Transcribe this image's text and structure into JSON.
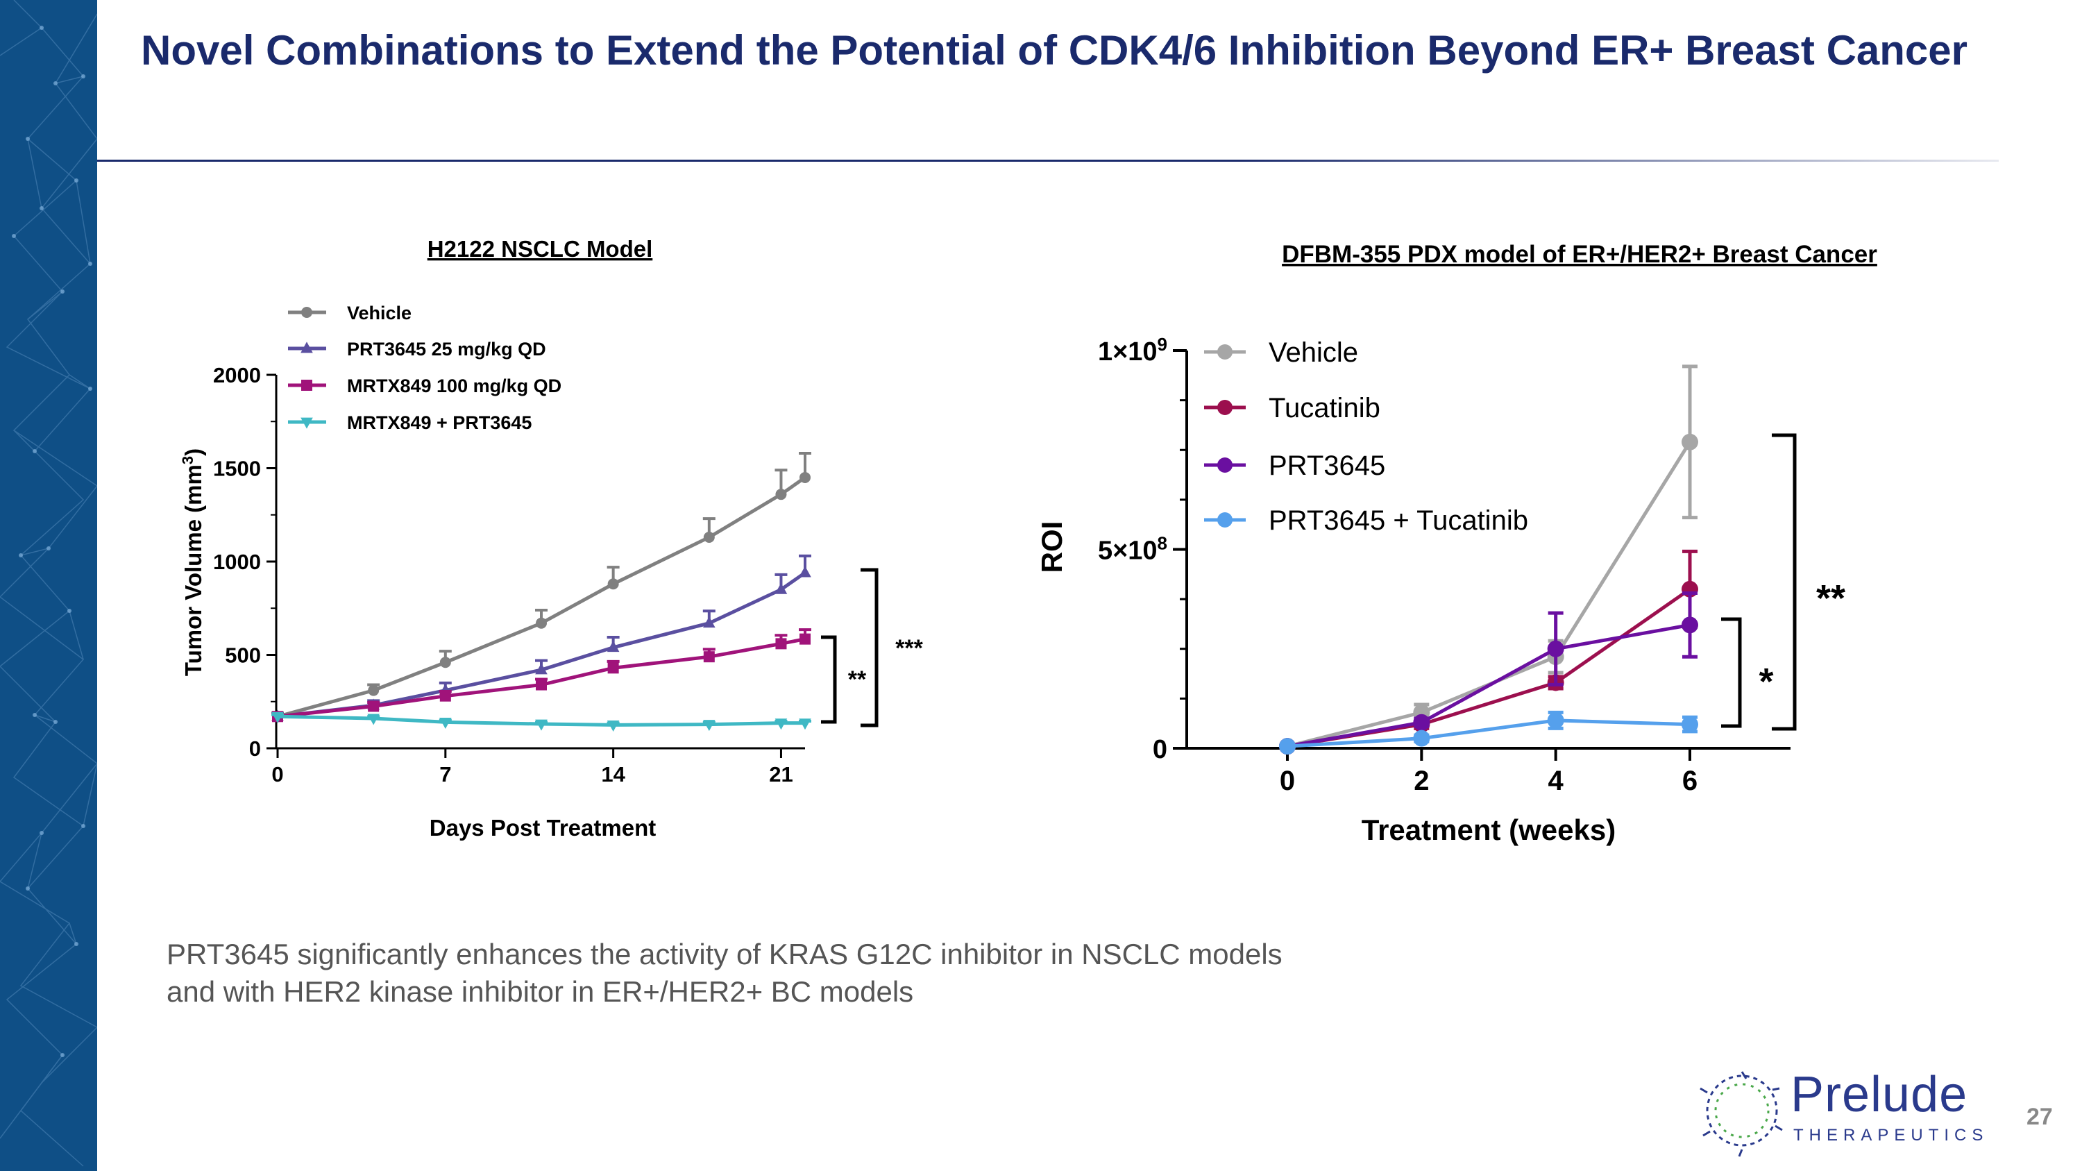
{
  "slide": {
    "title": "Novel Combinations to Extend the Potential of CDK4/6 Inhibition Beyond ER+ Breast Cancer",
    "caption_line1": "PRT3645 significantly enhances the activity of KRAS G12C inhibitor in NSCLC models",
    "caption_line2": "and with HER2 kinase inhibitor in ER+/HER2+ BC models",
    "page_number": "27",
    "logo_word": "Prelude",
    "logo_sub": "THERAPEUTICS"
  },
  "colors": {
    "sidebar": "#0f4f86",
    "title": "#1a2a6c"
  },
  "chart_data": [
    {
      "type": "line",
      "title": "H2122 NSCLC Model",
      "xlabel": "Days Post Treatment",
      "ylabel": "Tumor Volume (mm",
      "ylabel_sup": "3",
      "ylabel_close": ")",
      "xlim": [
        0,
        22
      ],
      "ylim": [
        0,
        2000
      ],
      "xticks": [
        0,
        7,
        14,
        21
      ],
      "xtick_labels": [
        "0",
        "7",
        "14",
        "21"
      ],
      "yticks": [
        0,
        500,
        1000,
        1500,
        2000
      ],
      "ytick_labels": [
        "0",
        "500",
        "1000",
        "1500",
        "2000"
      ],
      "legend_position": "top-left",
      "series": [
        {
          "name": "Vehicle",
          "color": "#808080",
          "marker": "circle",
          "x": [
            0,
            4,
            7,
            11,
            14,
            18,
            21,
            22
          ],
          "y": [
            170,
            310,
            460,
            670,
            880,
            1130,
            1360,
            1450
          ],
          "err": [
            20,
            30,
            60,
            70,
            90,
            100,
            130,
            130
          ]
        },
        {
          "name": "PRT3645 25 mg/kg QD",
          "color": "#5a4fa0",
          "marker": "triangle-up",
          "x": [
            0,
            4,
            7,
            11,
            14,
            18,
            21,
            22
          ],
          "y": [
            170,
            230,
            310,
            420,
            540,
            670,
            850,
            940
          ],
          "err": [
            15,
            25,
            40,
            50,
            55,
            65,
            80,
            90
          ]
        },
        {
          "name": "MRTX849 100 mg/kg QD",
          "color": "#a0137a",
          "marker": "square",
          "x": [
            0,
            4,
            7,
            11,
            14,
            18,
            21,
            22
          ],
          "y": [
            170,
            225,
            280,
            340,
            430,
            490,
            560,
            585
          ],
          "err": [
            15,
            20,
            25,
            30,
            35,
            40,
            45,
            50
          ]
        },
        {
          "name": "MRTX849 + PRT3645",
          "color": "#3fb8c4",
          "marker": "triangle-down",
          "x": [
            0,
            4,
            7,
            11,
            14,
            18,
            21,
            22
          ],
          "y": [
            170,
            160,
            140,
            130,
            125,
            128,
            135,
            135
          ],
          "err": [
            10,
            10,
            10,
            10,
            10,
            10,
            10,
            10
          ]
        }
      ],
      "significance": [
        {
          "label": "**"
        },
        {
          "label": "***"
        }
      ]
    },
    {
      "type": "line",
      "title": "DFBM-355 PDX model of ER+/HER2+ Breast Cancer",
      "xlabel": "Treatment (weeks)",
      "ylabel": "ROI",
      "xlim": [
        -1.5,
        7.5
      ],
      "ylim": [
        0,
        1000000000
      ],
      "xticks": [
        0,
        2,
        4,
        6
      ],
      "xtick_labels": [
        "0",
        "2",
        "4",
        "6"
      ],
      "yticks": [
        0,
        500000000,
        1000000000
      ],
      "ytick_labels": [
        {
          "base": "0",
          "exp": ""
        },
        {
          "base": "5×10",
          "exp": "8"
        },
        {
          "base": "1×10",
          "exp": "9"
        }
      ],
      "legend_position": "top-left",
      "series": [
        {
          "name": "Vehicle",
          "color": "#a6a6a6",
          "marker": "circle",
          "x": [
            0,
            2,
            4,
            6
          ],
          "y": [
            5000000,
            90000000,
            230000000,
            770000000
          ],
          "err": [
            5000000,
            20000000,
            40000000,
            190000000
          ]
        },
        {
          "name": "Tucatinib",
          "color": "#9c0f4e",
          "marker": "circle",
          "x": [
            0,
            2,
            4,
            6
          ],
          "y": [
            5000000,
            60000000,
            165000000,
            400000000
          ],
          "err": [
            5000000,
            10000000,
            15000000,
            95000000
          ]
        },
        {
          "name": "PRT3645",
          "color": "#6a0fa0",
          "marker": "circle",
          "x": [
            0,
            2,
            4,
            6
          ],
          "y": [
            5000000,
            65000000,
            250000000,
            310000000
          ],
          "err": [
            5000000,
            10000000,
            90000000,
            80000000
          ]
        },
        {
          "name": "PRT3645 + Tucatinib",
          "color": "#55a0ec",
          "marker": "circle",
          "x": [
            0,
            2,
            4,
            6
          ],
          "y": [
            5000000,
            25000000,
            70000000,
            60000000
          ],
          "err": [
            5000000,
            8000000,
            20000000,
            18000000
          ]
        }
      ],
      "significance": [
        {
          "label": "*"
        },
        {
          "label": "**"
        }
      ]
    }
  ]
}
